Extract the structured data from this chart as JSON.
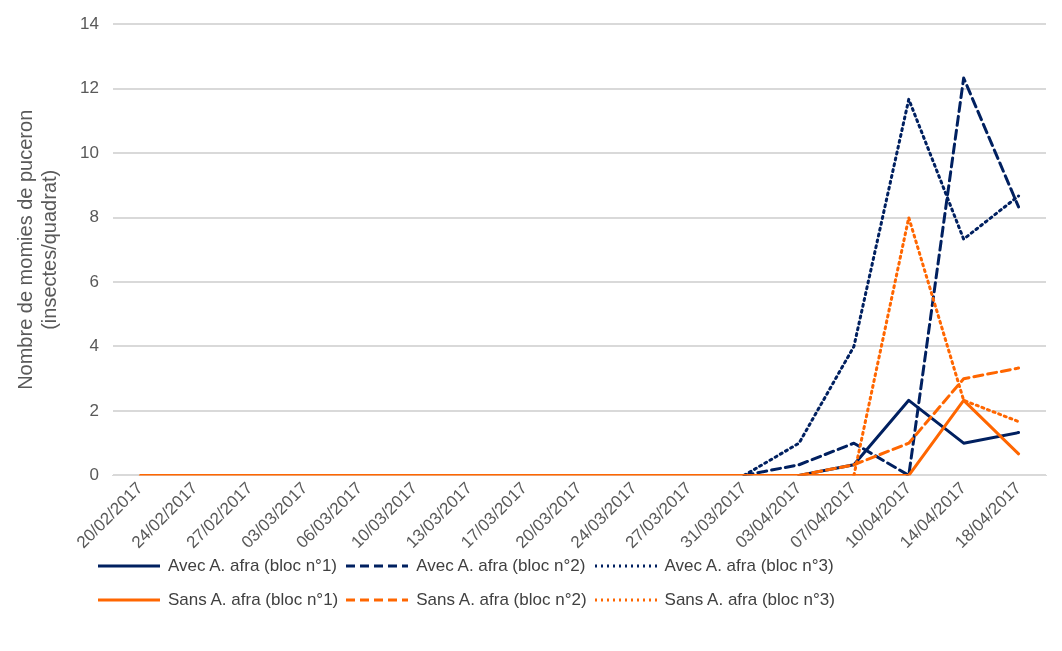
{
  "chart_data": {
    "type": "line",
    "ylabel": "Nombre de momies de puceron\n(insectes/quadrat)",
    "categories": [
      "20/02/2017",
      "24/02/2017",
      "27/02/2017",
      "03/03/2017",
      "06/03/2017",
      "10/03/2017",
      "13/03/2017",
      "17/03/2017",
      "20/03/2017",
      "24/03/2017",
      "27/03/2017",
      "31/03/2017",
      "03/04/2017",
      "07/04/2017",
      "10/04/2017",
      "14/04/2017",
      "18/04/2017"
    ],
    "series": [
      {
        "name": "Avec A. afra (bloc n°1)",
        "color": "#002060",
        "line_style": "solid",
        "values": [
          null,
          null,
          null,
          null,
          null,
          null,
          null,
          null,
          null,
          null,
          null,
          null,
          0,
          0.33,
          2.33,
          1,
          1.33
        ]
      },
      {
        "name": "Avec A. afra (bloc n°2)",
        "color": "#002060",
        "line_style": "dashed",
        "values": [
          null,
          null,
          null,
          null,
          null,
          null,
          null,
          null,
          null,
          null,
          null,
          0,
          0.33,
          1,
          0,
          12.33,
          8.33
        ]
      },
      {
        "name": "Avec A. afra (bloc n°3)",
        "color": "#002060",
        "line_style": "dotted",
        "values": [
          null,
          null,
          null,
          null,
          null,
          null,
          null,
          null,
          null,
          null,
          null,
          0,
          1,
          4,
          11.67,
          7.33,
          8.67
        ]
      },
      {
        "name": "Sans A. afra (bloc n°1)",
        "color": "#ff6600",
        "line_style": "solid",
        "values": [
          0,
          0,
          0,
          0,
          0,
          0,
          0,
          0,
          0,
          0,
          0,
          0,
          0,
          0,
          0,
          2.33,
          0.67
        ]
      },
      {
        "name": "Sans A. afra (bloc n°2)",
        "color": "#ff6600",
        "line_style": "dashed",
        "values": [
          null,
          null,
          null,
          null,
          null,
          null,
          null,
          null,
          null,
          null,
          null,
          null,
          0,
          0.33,
          1,
          3,
          3.33
        ]
      },
      {
        "name": "Sans A. afra (bloc n°3)",
        "color": "#ff6600",
        "line_style": "dotted",
        "values": [
          null,
          null,
          null,
          null,
          null,
          null,
          null,
          null,
          null,
          null,
          null,
          null,
          null,
          0,
          8,
          2.33,
          1.67
        ]
      }
    ],
    "ylim": [
      0,
      14
    ],
    "yticks": [
      0,
      2,
      4,
      6,
      8,
      10,
      12,
      14
    ],
    "grid": "y",
    "legend": "bottom",
    "marker": "none"
  }
}
